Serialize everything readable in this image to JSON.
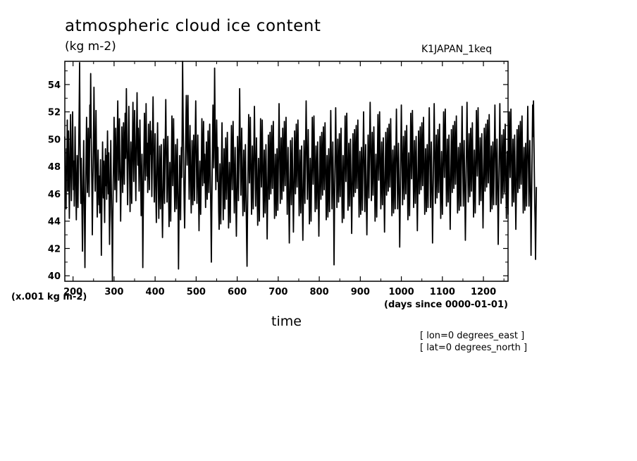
{
  "chart_data": {
    "type": "line",
    "title": "atmospheric cloud ice content",
    "units_label": "(kg m-2)",
    "run_label": "K1JAPAN_1keq",
    "scale_note": "(x.001 kg m-2)",
    "xlabel": "time",
    "x_units": "(days since 0000-01-01)",
    "annotations": [
      "[ lon=0 degrees_east ]",
      "[ lat=0 degrees_north ]"
    ],
    "xlim": [
      180,
      1260
    ],
    "ylim": [
      39.6,
      55.7
    ],
    "x_ticks": [
      200,
      300,
      400,
      500,
      600,
      700,
      800,
      900,
      1000,
      1100,
      1200
    ],
    "y_ticks": [
      40,
      42,
      44,
      46,
      48,
      50,
      52,
      54
    ],
    "grid": false,
    "series": [
      {
        "x_start": 180,
        "x_step": 1,
        "y": [
          50.2,
          45.6,
          47.8,
          44.9,
          49.3,
          48.5,
          51.4,
          46.2,
          48.9,
          50.6,
          47.3,
          44.2,
          46.8,
          49.6,
          51.8,
          48.0,
          45.5,
          47.2,
          50.0,
          52.0,
          49.1,
          46.3,
          48.4,
          45.1,
          47.9,
          50.9,
          48.2,
          46.0,
          44.1,
          46.7,
          48.8,
          47.4,
          45.0,
          47.5,
          49.7,
          52.3,
          55.6,
          50.4,
          47.1,
          45.3,
          48.6,
          46.9,
          44.4,
          41.8,
          44.8,
          47.6,
          49.9,
          46.5,
          43.8,
          40.6,
          44.7,
          47.0,
          49.4,
          51.6,
          48.3,
          46.1,
          48.7,
          50.8,
          47.7,
          45.8,
          48.1,
          52.5,
          50.1,
          54.8,
          51.2,
          48.6,
          46.4,
          43.0,
          45.9,
          48.0,
          50.3,
          53.8,
          51.0,
          47.9,
          46.2,
          49.5,
          52.1,
          49.0,
          46.6,
          44.3,
          46.8,
          49.2,
          47.0,
          45.2,
          47.3,
          44.6,
          46.4,
          48.5,
          45.4,
          41.5,
          44.5,
          46.9,
          49.8,
          47.2,
          45.7,
          48.4,
          46.1,
          43.9,
          47.6,
          49.3,
          46.6,
          48.8,
          45.6,
          47.9,
          50.6,
          48.2,
          46.0,
          49.0,
          45.7,
          42.3,
          44.8,
          47.5,
          49.9,
          47.1,
          44.6,
          43.3,
          39.6,
          44.2,
          46.9,
          49.0,
          51.6,
          48.7,
          46.3,
          48.9,
          50.8,
          48.0,
          45.4,
          47.8,
          50.5,
          52.8,
          49.6,
          47.0,
          49.2,
          51.5,
          48.4,
          46.5,
          44.0,
          46.4,
          48.6,
          50.9,
          48.3,
          46.1,
          48.8,
          51.2,
          49.0,
          46.7,
          49.4,
          51.9,
          48.6,
          50.2,
          53.7,
          50.4,
          47.3,
          45.2,
          47.6,
          50.1,
          52.4,
          49.5,
          47.0,
          44.7,
          47.1,
          49.8,
          47.5,
          45.3,
          47.8,
          50.3,
          52.7,
          49.2,
          46.9,
          49.9,
          52.1,
          50.2,
          47.6,
          45.5,
          48.2,
          51.0,
          53.4,
          50.5,
          48.1,
          50.8,
          48.4,
          46.2,
          48.7,
          51.4,
          49.1,
          46.7,
          44.4,
          46.6,
          48.9,
          46.0,
          40.6,
          44.3,
          47.2,
          49.6,
          51.9,
          49.3,
          47.0,
          49.5,
          52.6,
          49.8,
          47.3,
          49.7,
          46.1,
          48.8,
          51.1,
          48.5,
          46.3,
          48.6,
          51.3,
          48.9,
          50.6,
          48.3,
          45.8,
          48.4,
          50.9,
          53.1,
          50.3,
          47.7,
          45.4,
          48.0,
          50.4,
          47.9,
          45.6,
          43.9,
          46.4,
          48.9,
          51.2,
          48.6,
          46.2,
          44.2,
          46.8,
          49.5,
          47.1,
          44.9,
          47.4,
          49.6,
          46.8,
          44.8,
          42.8,
          45.1,
          47.7,
          50.0,
          47.6,
          45.3,
          48.1,
          50.5,
          52.9,
          49.9,
          47.8,
          45.4,
          47.9,
          50.2,
          48.0,
          45.7,
          43.6,
          46.0,
          48.3,
          46.1,
          44.0,
          46.4,
          49.1,
          51.7,
          49.0,
          46.6,
          49.3,
          51.5,
          48.8,
          46.4,
          44.7,
          47.1,
          49.6,
          47.3,
          44.9,
          47.5,
          50.0,
          47.4,
          45.0,
          40.5,
          43.8,
          46.2,
          48.8,
          46.5,
          44.1,
          46.8,
          49.4,
          47.2,
          51.3,
          55.7,
          52.4,
          49.5,
          47.1,
          44.9,
          43.5,
          46.0,
          48.6,
          51.1,
          53.2,
          50.6,
          48.1,
          50.7,
          53.2,
          50.4,
          47.9,
          45.6,
          48.3,
          51.0,
          48.5,
          46.2,
          44.6,
          47.2,
          49.9,
          47.4,
          45.2,
          47.9,
          50.3,
          48.0,
          45.5,
          48.2,
          50.7,
          52.8,
          50.1,
          47.6,
          45.3,
          47.8,
          50.3,
          48.0,
          45.7,
          43.3,
          45.9,
          48.4,
          46.1,
          44.5,
          46.7,
          49.0,
          51.5,
          48.9,
          46.6,
          49.1,
          51.3,
          49.0,
          46.8,
          48.9,
          47.3,
          45.0,
          47.5,
          49.8,
          47.7,
          45.6,
          48.1,
          50.6,
          48.3,
          46.1,
          48.7,
          51.1,
          48.8,
          46.5,
          44.2,
          41.0,
          44.5,
          47.3,
          50.0,
          52.5,
          50.2,
          47.9,
          50.4,
          55.2,
          51.7,
          48.6,
          46.3,
          49.0,
          51.4,
          49.1,
          46.9,
          49.4,
          47.0,
          44.7,
          43.4,
          45.8,
          48.2,
          46.0,
          43.8,
          46.3,
          48.9,
          51.2,
          48.7,
          46.4,
          44.1,
          46.6,
          49.3,
          47.1,
          44.9,
          47.4,
          50.1,
          47.8,
          45.6,
          48.0,
          50.5,
          48.2,
          45.9,
          43.5,
          45.8,
          48.3,
          46.0,
          43.9,
          46.2,
          48.7,
          51.0,
          48.6,
          46.3,
          48.9,
          51.3,
          49.0,
          46.7,
          44.6,
          47.0,
          49.4,
          47.1,
          44.8,
          42.9,
          45.2,
          47.8,
          50.2,
          47.9,
          45.5,
          48.0,
          50.4,
          53.7,
          50.8,
          48.2,
          45.9,
          48.4,
          50.8,
          48.5,
          46.2,
          44.4,
          46.9,
          49.2,
          46.9,
          44.7,
          47.1,
          49.6,
          47.3,
          45.0,
          42.6,
          40.7,
          44.0,
          46.7,
          49.3,
          51.8,
          49.2,
          46.8,
          49.3,
          51.6,
          49.0,
          46.7,
          44.5,
          47.0,
          49.5,
          47.2,
          44.9,
          47.3,
          50.0,
          52.4,
          49.7,
          47.4,
          45.1,
          47.6,
          50.1,
          47.8,
          45.5,
          43.7,
          46.1,
          48.6,
          46.3,
          44.0,
          46.5,
          49.0,
          51.5,
          48.9,
          46.5,
          48.9,
          51.4,
          49.1,
          46.7,
          44.3,
          46.8,
          49.2,
          46.9,
          44.6,
          47.0,
          49.6,
          47.3,
          45.1,
          42.7,
          45.2,
          47.7,
          50.3,
          47.9,
          45.6,
          48.1,
          50.5,
          48.3,
          46.0,
          48.5,
          51.0,
          48.7,
          46.4,
          48.8,
          51.3,
          48.9,
          46.6,
          44.2,
          46.5,
          48.9,
          46.6,
          44.4,
          46.9,
          49.3,
          47.1,
          44.8,
          47.3,
          49.8,
          52.6,
          50.1,
          47.6,
          45.3,
          47.8,
          50.1,
          47.9,
          45.6,
          48.2,
          50.8,
          48.4,
          46.2,
          48.7,
          51.3,
          48.9,
          46.6,
          49.1,
          51.6,
          49.2,
          46.9,
          44.5,
          46.9,
          49.4,
          47.0,
          44.8,
          42.4,
          44.9,
          47.4,
          49.9,
          47.5,
          45.2,
          47.7,
          50.1,
          47.8,
          45.5,
          43.2,
          45.6,
          48.1,
          50.6,
          48.3,
          46.0,
          48.6,
          51.1,
          48.8,
          46.5,
          49.0,
          51.4,
          49.1,
          46.8,
          44.4,
          46.8,
          49.2,
          46.9,
          44.6,
          47.1,
          49.5,
          47.2,
          44.9,
          42.6,
          45.0,
          47.5,
          49.9,
          47.6,
          45.3,
          47.8,
          50.3,
          52.8,
          50.2,
          47.9,
          45.6,
          48.2,
          50.7,
          48.4,
          46.1,
          43.8,
          46.2,
          48.6,
          46.3,
          44.0,
          46.5,
          49.0,
          51.6,
          49.1,
          46.7,
          49.2,
          51.7,
          49.3,
          47.0,
          44.7,
          47.1,
          49.5,
          47.2,
          44.9,
          47.4,
          49.8,
          47.5,
          45.2,
          42.9,
          45.3,
          47.8,
          50.2,
          47.9,
          45.6,
          48.1,
          50.5,
          48.2,
          45.9,
          48.4,
          50.9,
          48.6,
          46.3,
          48.7,
          51.2,
          48.8,
          46.5,
          44.1,
          46.4,
          48.8,
          46.5,
          44.3,
          46.8,
          49.3,
          47.0,
          44.7,
          47.2,
          49.6,
          52.1,
          49.5,
          47.2,
          44.9,
          47.3,
          49.8,
          47.5,
          45.2,
          40.8,
          44.6,
          47.2,
          49.8,
          52.3,
          49.7,
          47.4,
          45.0,
          47.5,
          50.0,
          47.7,
          45.4,
          47.9,
          50.4,
          48.1,
          45.8,
          48.3,
          50.8,
          48.5,
          46.2,
          43.9,
          46.3,
          48.8,
          46.5,
          44.2,
          46.7,
          49.1,
          51.7,
          49.2,
          46.9,
          49.4,
          51.9,
          49.5,
          47.2,
          44.8,
          47.2,
          49.7,
          47.4,
          45.1,
          47.6,
          50.0,
          47.7,
          45.4,
          43.1,
          45.5,
          48.0,
          50.4,
          48.1,
          45.8,
          48.3,
          50.7,
          48.4,
          46.1,
          48.6,
          51.0,
          48.7,
          46.4,
          48.9,
          51.4,
          49.0,
          46.7,
          44.3,
          46.7,
          49.1,
          46.8,
          44.5,
          47.0,
          49.4,
          47.1,
          44.8,
          47.3,
          49.7,
          52.0,
          49.4,
          47.1,
          44.7,
          47.1,
          49.6,
          47.3,
          45.0,
          43.0,
          45.4,
          47.9,
          50.3,
          48.0,
          45.7,
          48.2,
          50.6,
          52.7,
          50.1,
          47.8,
          45.5,
          48.0,
          50.5,
          48.2,
          45.9,
          48.4,
          50.9,
          48.6,
          46.3,
          44.0,
          46.4,
          48.9,
          46.6,
          44.3,
          46.8,
          49.2,
          51.8,
          49.3,
          47.0,
          49.5,
          52.0,
          49.6,
          47.3,
          44.9,
          47.3,
          49.8,
          47.5,
          45.2,
          47.7,
          50.1,
          47.8,
          45.5,
          43.2,
          45.6,
          48.1,
          50.5,
          48.2,
          45.9,
          48.4,
          50.8,
          48.5,
          46.2,
          48.7,
          51.1,
          48.8,
          46.5,
          49.0,
          51.5,
          49.1,
          46.8,
          44.4,
          46.8,
          49.2,
          46.9,
          44.6,
          47.1,
          49.5,
          47.2,
          44.9,
          47.4,
          49.8,
          52.2,
          49.6,
          47.3,
          44.9,
          47.3,
          49.7,
          47.4,
          45.1,
          42.1,
          44.8,
          47.4,
          49.9,
          52.5,
          49.8,
          47.5,
          45.2,
          47.7,
          50.2,
          47.9,
          45.6,
          48.1,
          50.6,
          48.3,
          46.0,
          48.5,
          51.0,
          48.7,
          46.4,
          44.1,
          46.5,
          49.0,
          46.7,
          44.4,
          46.9,
          49.3,
          51.9,
          49.4,
          47.1,
          49.6,
          52.1,
          49.7,
          47.4,
          45.0,
          47.4,
          49.9,
          47.6,
          45.3,
          47.8,
          50.2,
          47.9,
          45.6,
          43.3,
          45.7,
          48.2,
          50.6,
          48.3,
          46.0,
          48.5,
          50.9,
          48.6,
          46.3,
          48.8,
          51.2,
          48.9,
          46.6,
          49.1,
          51.6,
          49.2,
          46.9,
          44.5,
          46.9,
          49.3,
          47.0,
          44.7,
          47.2,
          49.6,
          47.3,
          45.0,
          47.5,
          49.9,
          52.3,
          49.7,
          47.4,
          45.0,
          47.4,
          49.8,
          47.5,
          45.2,
          42.4,
          44.9,
          47.5,
          50.0,
          52.6,
          49.9,
          47.6,
          45.3,
          47.8,
          50.3,
          48.0,
          45.7,
          48.2,
          50.7,
          48.4,
          46.1,
          48.6,
          51.1,
          48.8,
          46.5,
          44.2,
          46.6,
          49.1,
          46.8,
          44.5,
          47.0,
          49.4,
          52.0,
          49.5,
          47.2,
          49.7,
          52.2,
          49.8,
          47.5,
          45.1,
          47.5,
          50.0,
          47.7,
          45.4,
          47.9,
          50.3,
          48.0,
          45.7,
          43.4,
          45.8,
          48.3,
          50.7,
          48.4,
          46.1,
          48.6,
          51.0,
          48.7,
          46.4,
          48.9,
          51.3,
          49.0,
          46.7,
          49.2,
          51.7,
          49.3,
          47.0,
          44.6,
          47.0,
          49.4,
          47.1,
          44.8,
          47.3,
          49.7,
          47.4,
          45.1,
          47.6,
          50.0,
          52.4,
          49.8,
          47.5,
          45.1,
          47.5,
          49.9,
          47.6,
          45.3,
          42.6,
          45.0,
          47.6,
          50.1,
          52.7,
          50.0,
          47.7,
          45.4,
          47.9,
          50.4,
          48.1,
          45.8,
          48.3,
          50.8,
          48.5,
          46.2,
          48.7,
          51.2,
          48.9,
          46.6,
          44.3,
          46.7,
          49.2,
          46.9,
          44.6,
          47.1,
          49.5,
          52.1,
          49.6,
          47.3,
          49.8,
          52.3,
          49.9,
          47.6,
          45.2,
          47.6,
          50.1,
          47.8,
          45.5,
          48.0,
          50.4,
          48.1,
          45.8,
          43.5,
          45.9,
          48.4,
          50.8,
          48.5,
          46.2,
          48.7,
          51.1,
          48.8,
          46.5,
          49.0,
          51.4,
          49.1,
          46.8,
          49.3,
          51.8,
          49.4,
          47.1,
          44.7,
          47.1,
          49.5,
          47.2,
          44.9,
          47.4,
          49.8,
          47.5,
          45.2,
          47.7,
          50.1,
          52.5,
          49.9,
          47.6,
          45.2,
          47.6,
          50.0,
          47.7,
          45.4,
          42.3,
          44.9,
          47.5,
          50.0,
          52.6,
          49.9,
          47.6,
          45.3,
          47.8,
          50.3,
          48.0,
          45.7,
          48.2,
          50.7,
          48.4,
          46.1,
          48.6,
          51.1,
          48.8,
          46.5,
          44.2,
          46.6,
          49.1,
          46.8,
          44.5,
          47.0,
          49.4,
          52.0,
          49.5,
          47.2,
          49.7,
          52.2,
          49.8,
          47.5,
          45.1,
          47.5,
          50.0,
          47.7,
          45.4,
          47.9,
          50.3,
          48.0,
          45.7,
          43.4,
          45.8,
          48.3,
          50.7,
          48.4,
          46.1,
          48.6,
          51.0,
          48.7,
          46.4,
          48.9,
          51.3,
          49.0,
          46.7,
          49.2,
          51.7,
          49.3,
          47.0,
          44.6,
          47.0,
          49.4,
          47.1,
          44.8,
          47.3,
          49.7,
          47.4,
          45.1,
          47.6,
          50.0,
          52.4,
          49.8,
          47.5,
          45.1,
          47.5,
          49.9,
          47.6,
          45.3,
          41.5,
          44.6,
          47.3,
          49.9,
          52.5,
          50.2,
          52.8,
          50.0,
          47.6,
          45.3,
          44.0,
          41.2,
          43.9,
          46.5
        ]
      }
    ]
  }
}
